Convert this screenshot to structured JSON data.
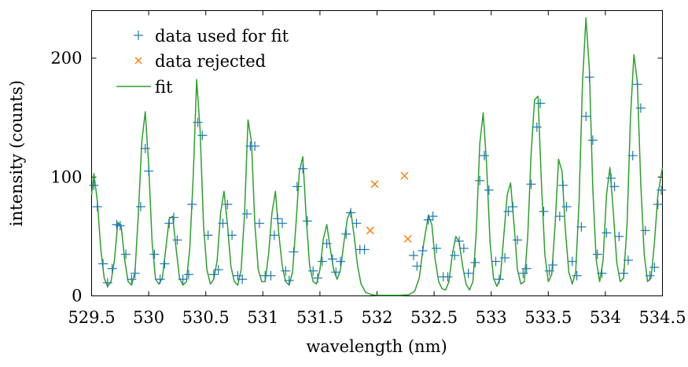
{
  "chart_data": {
    "type": "scatter",
    "title": "",
    "xlabel": "wavelength (nm)",
    "ylabel": "intensity (counts)",
    "xlim": [
      529.5,
      534.5
    ],
    "ylim": [
      0,
      240
    ],
    "x_ticks": [
      "529.5",
      "530",
      "530.5",
      "531",
      "531.5",
      "532",
      "532.5",
      "533",
      "533.5",
      "534",
      "534.5"
    ],
    "y_ticks": [
      "0",
      "100",
      "200"
    ],
    "grid": false,
    "legend_position": "top-left",
    "legend": [
      "data used for fit",
      "data rejected",
      "fit"
    ],
    "colors": {
      "used": "#1f77b4",
      "rejected": "#ff7f0e",
      "fit": "#2ca02c"
    },
    "series": [
      {
        "name": "data used for fit",
        "marker": "plus",
        "points": [
          [
            529.52,
            93
          ],
          [
            529.55,
            75
          ],
          [
            529.6,
            27
          ],
          [
            529.64,
            11
          ],
          [
            529.68,
            23
          ],
          [
            529.72,
            60
          ],
          [
            529.75,
            59
          ],
          [
            529.8,
            35
          ],
          [
            529.85,
            14
          ],
          [
            529.88,
            19
          ],
          [
            529.93,
            75
          ],
          [
            529.97,
            124
          ],
          [
            530.0,
            105
          ],
          [
            530.05,
            35
          ],
          [
            530.1,
            14
          ],
          [
            530.14,
            27
          ],
          [
            530.18,
            61
          ],
          [
            530.22,
            66
          ],
          [
            530.25,
            47
          ],
          [
            530.3,
            14
          ],
          [
            530.35,
            18
          ],
          [
            530.38,
            77
          ],
          [
            530.43,
            146
          ],
          [
            530.47,
            135
          ],
          [
            530.52,
            51
          ],
          [
            530.57,
            18
          ],
          [
            530.61,
            22
          ],
          [
            530.65,
            61
          ],
          [
            530.69,
            77
          ],
          [
            530.73,
            51
          ],
          [
            530.78,
            17
          ],
          [
            530.82,
            14
          ],
          [
            530.86,
            69
          ],
          [
            530.89,
            126
          ],
          [
            530.93,
            126
          ],
          [
            530.97,
            61
          ],
          [
            531.02,
            17
          ],
          [
            531.07,
            17
          ],
          [
            531.1,
            51
          ],
          [
            531.13,
            65
          ],
          [
            531.17,
            61
          ],
          [
            531.2,
            21
          ],
          [
            531.23,
            13
          ],
          [
            531.27,
            37
          ],
          [
            531.3,
            92
          ],
          [
            531.35,
            107
          ],
          [
            531.39,
            63
          ],
          [
            531.44,
            21
          ],
          [
            531.48,
            15
          ],
          [
            531.52,
            29
          ],
          [
            531.56,
            44
          ],
          [
            531.61,
            31
          ],
          [
            531.64,
            20
          ],
          [
            531.68,
            29
          ],
          [
            531.73,
            52
          ],
          [
            531.77,
            70
          ],
          [
            531.82,
            61
          ],
          [
            531.85,
            39
          ],
          [
            531.89,
            39
          ],
          [
            532.32,
            34
          ],
          [
            532.35,
            25
          ],
          [
            532.4,
            38
          ],
          [
            532.45,
            64
          ],
          [
            532.49,
            67
          ],
          [
            532.52,
            40
          ],
          [
            532.58,
            16
          ],
          [
            532.62,
            16
          ],
          [
            532.68,
            34
          ],
          [
            532.72,
            46
          ],
          [
            532.76,
            40
          ],
          [
            532.8,
            19
          ],
          [
            532.86,
            28
          ],
          [
            532.9,
            97
          ],
          [
            532.94,
            118
          ],
          [
            532.98,
            89
          ],
          [
            533.04,
            29
          ],
          [
            533.07,
            14
          ],
          [
            533.12,
            32
          ],
          [
            533.15,
            71
          ],
          [
            533.19,
            75
          ],
          [
            533.23,
            47
          ],
          [
            533.28,
            19
          ],
          [
            533.31,
            23
          ],
          [
            533.35,
            94
          ],
          [
            533.4,
            142
          ],
          [
            533.43,
            162
          ],
          [
            533.46,
            71
          ],
          [
            533.51,
            21
          ],
          [
            533.54,
            26
          ],
          [
            533.6,
            67
          ],
          [
            533.63,
            93
          ],
          [
            533.66,
            75
          ],
          [
            533.71,
            29
          ],
          [
            533.75,
            17
          ],
          [
            533.79,
            58
          ],
          [
            533.83,
            151
          ],
          [
            533.86,
            184
          ],
          [
            533.89,
            131
          ],
          [
            533.93,
            35
          ],
          [
            533.97,
            19
          ],
          [
            534.01,
            53
          ],
          [
            534.05,
            99
          ],
          [
            534.08,
            92
          ],
          [
            534.12,
            50
          ],
          [
            534.16,
            19
          ],
          [
            534.2,
            30
          ],
          [
            534.24,
            118
          ],
          [
            534.28,
            178
          ],
          [
            534.31,
            158
          ],
          [
            534.35,
            55
          ],
          [
            534.39,
            17
          ],
          [
            534.43,
            24
          ],
          [
            534.46,
            77
          ],
          [
            534.49,
            89
          ]
        ]
      },
      {
        "name": "data rejected",
        "marker": "cross",
        "points": [
          [
            531.94,
            55
          ],
          [
            531.98,
            94
          ],
          [
            532.24,
            101
          ],
          [
            532.27,
            48
          ]
        ]
      },
      {
        "name": "fit",
        "marker": "line",
        "points": [
          [
            529.5,
            85
          ],
          [
            529.52,
            103
          ],
          [
            529.55,
            80
          ],
          [
            529.58,
            40
          ],
          [
            529.61,
            15
          ],
          [
            529.64,
            8
          ],
          [
            529.67,
            12
          ],
          [
            529.7,
            30
          ],
          [
            529.73,
            62
          ],
          [
            529.76,
            58
          ],
          [
            529.79,
            30
          ],
          [
            529.82,
            12
          ],
          [
            529.85,
            9
          ],
          [
            529.88,
            20
          ],
          [
            529.91,
            70
          ],
          [
            529.94,
            130
          ],
          [
            529.97,
            155
          ],
          [
            530.0,
            110
          ],
          [
            530.03,
            45
          ],
          [
            530.06,
            14
          ],
          [
            530.09,
            10
          ],
          [
            530.12,
            15
          ],
          [
            530.15,
            40
          ],
          [
            530.18,
            65
          ],
          [
            530.21,
            67
          ],
          [
            530.24,
            40
          ],
          [
            530.27,
            15
          ],
          [
            530.3,
            9
          ],
          [
            530.33,
            12
          ],
          [
            530.36,
            40
          ],
          [
            530.39,
            100
          ],
          [
            530.42,
            182
          ],
          [
            530.45,
            140
          ],
          [
            530.48,
            60
          ],
          [
            530.51,
            22
          ],
          [
            530.54,
            10
          ],
          [
            530.57,
            14
          ],
          [
            530.6,
            30
          ],
          [
            530.63,
            70
          ],
          [
            530.66,
            88
          ],
          [
            530.69,
            60
          ],
          [
            530.72,
            25
          ],
          [
            530.75,
            12
          ],
          [
            530.78,
            9
          ],
          [
            530.81,
            22
          ],
          [
            530.84,
            70
          ],
          [
            530.87,
            148
          ],
          [
            530.9,
            130
          ],
          [
            530.93,
            60
          ],
          [
            530.96,
            22
          ],
          [
            530.99,
            12
          ],
          [
            531.02,
            12
          ],
          [
            531.05,
            35
          ],
          [
            531.08,
            70
          ],
          [
            531.11,
            88
          ],
          [
            531.14,
            52
          ],
          [
            531.17,
            25
          ],
          [
            531.2,
            12
          ],
          [
            531.23,
            9
          ],
          [
            531.26,
            20
          ],
          [
            531.29,
            60
          ],
          [
            531.32,
            105
          ],
          [
            531.35,
            117
          ],
          [
            531.38,
            65
          ],
          [
            531.41,
            25
          ],
          [
            531.44,
            12
          ],
          [
            531.47,
            10
          ],
          [
            531.5,
            22
          ],
          [
            531.53,
            48
          ],
          [
            531.56,
            60
          ],
          [
            531.59,
            40
          ],
          [
            531.62,
            22
          ],
          [
            531.65,
            14
          ],
          [
            531.68,
            22
          ],
          [
            531.71,
            45
          ],
          [
            531.74,
            65
          ],
          [
            531.77,
            72
          ],
          [
            531.8,
            50
          ],
          [
            531.83,
            25
          ],
          [
            531.86,
            10
          ],
          [
            531.9,
            3
          ],
          [
            531.95,
            1
          ],
          [
            532.0,
            0.5
          ],
          [
            532.1,
            0.5
          ],
          [
            532.2,
            0.5
          ],
          [
            532.28,
            1
          ],
          [
            532.33,
            4
          ],
          [
            532.37,
            15
          ],
          [
            532.41,
            45
          ],
          [
            532.45,
            68
          ],
          [
            532.48,
            60
          ],
          [
            532.51,
            30
          ],
          [
            532.54,
            12
          ],
          [
            532.57,
            6
          ],
          [
            532.6,
            5
          ],
          [
            532.63,
            12
          ],
          [
            532.66,
            35
          ],
          [
            532.69,
            50
          ],
          [
            532.72,
            45
          ],
          [
            532.75,
            25
          ],
          [
            532.78,
            10
          ],
          [
            532.81,
            5
          ],
          [
            532.84,
            12
          ],
          [
            532.87,
            55
          ],
          [
            532.9,
            128
          ],
          [
            532.93,
            154
          ],
          [
            532.96,
            110
          ],
          [
            532.99,
            45
          ],
          [
            533.02,
            15
          ],
          [
            533.05,
            8
          ],
          [
            533.08,
            15
          ],
          [
            533.11,
            50
          ],
          [
            533.14,
            85
          ],
          [
            533.17,
            95
          ],
          [
            533.2,
            60
          ],
          [
            533.23,
            22
          ],
          [
            533.26,
            10
          ],
          [
            533.29,
            12
          ],
          [
            533.32,
            50
          ],
          [
            533.35,
            120
          ],
          [
            533.38,
            165
          ],
          [
            533.41,
            168
          ],
          [
            533.44,
            95
          ],
          [
            533.47,
            35
          ],
          [
            533.5,
            12
          ],
          [
            533.53,
            18
          ],
          [
            533.56,
            60
          ],
          [
            533.59,
            115
          ],
          [
            533.62,
            105
          ],
          [
            533.65,
            55
          ],
          [
            533.68,
            20
          ],
          [
            533.71,
            10
          ],
          [
            533.74,
            20
          ],
          [
            533.77,
            80
          ],
          [
            533.8,
            180
          ],
          [
            533.83,
            234
          ],
          [
            533.86,
            190
          ],
          [
            533.89,
            90
          ],
          [
            533.92,
            30
          ],
          [
            533.95,
            12
          ],
          [
            533.98,
            30
          ],
          [
            534.01,
            85
          ],
          [
            534.04,
            108
          ],
          [
            534.07,
            70
          ],
          [
            534.1,
            28
          ],
          [
            534.13,
            12
          ],
          [
            534.16,
            15
          ],
          [
            534.19,
            60
          ],
          [
            534.22,
            150
          ],
          [
            534.25,
            203
          ],
          [
            534.28,
            180
          ],
          [
            534.31,
            95
          ],
          [
            534.34,
            35
          ],
          [
            534.37,
            12
          ],
          [
            534.4,
            15
          ],
          [
            534.43,
            45
          ],
          [
            534.46,
            85
          ],
          [
            534.5,
            108
          ]
        ]
      }
    ]
  }
}
